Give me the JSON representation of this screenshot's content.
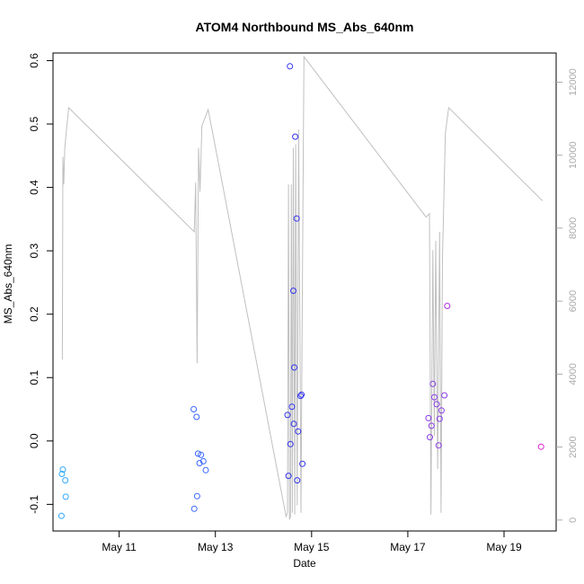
{
  "chart_data": {
    "type": "scatter",
    "title": "ATOM4 Northbound MS_Abs_640nm",
    "xlabel": "Date",
    "ylabel": "MS_Abs_640nm",
    "xlim": [
      "May 9 15:00",
      "May 20 02:00"
    ],
    "ylim": [
      -0.142,
      0.612
    ],
    "y2lim": [
      -300,
      12800
    ],
    "x_ticks": [
      {
        "label": "May 11",
        "day": 11
      },
      {
        "label": "May 13",
        "day": 13
      },
      {
        "label": "May 15",
        "day": 15
      },
      {
        "label": "May 17",
        "day": 17
      },
      {
        "label": "May 19",
        "day": 19
      }
    ],
    "y_ticks": [
      -0.1,
      0.0,
      0.1,
      0.2,
      0.3,
      0.4,
      0.5,
      0.6
    ],
    "y_tick_labels": [
      "-0.1",
      "0.0",
      "0.1",
      "0.2",
      "0.3",
      "0.4",
      "0.5",
      "0.6"
    ],
    "y2_ticks": [
      0,
      2000,
      4000,
      6000,
      8000,
      10000,
      12000
    ],
    "y2_tick_labels": [
      "0",
      "2000",
      "4000",
      "6000",
      "8000",
      "10000",
      "12000"
    ],
    "colors": {
      "secondary_line": "#c0c0c0",
      "axis": "#000000",
      "right_axis": "#aaaaaa",
      "points_start": "#33aaff",
      "points_mid": "#2a2aee",
      "points_end": "#dd22cc"
    },
    "points": [
      {
        "t": 9.8,
        "y": -0.118,
        "color": "#33aaff"
      },
      {
        "t": 9.81,
        "y": -0.052,
        "color": "#33aaff"
      },
      {
        "t": 9.83,
        "y": -0.045,
        "color": "#33aaff"
      },
      {
        "t": 9.88,
        "y": -0.062,
        "color": "#33aaff"
      },
      {
        "t": 9.89,
        "y": -0.088,
        "color": "#33aaff"
      },
      {
        "t": 12.55,
        "y": 0.05,
        "color": "#3a66ff"
      },
      {
        "t": 12.56,
        "y": -0.107,
        "color": "#3a66ff"
      },
      {
        "t": 12.61,
        "y": 0.038,
        "color": "#3a66ff"
      },
      {
        "t": 12.62,
        "y": -0.087,
        "color": "#3a66ff"
      },
      {
        "t": 12.64,
        "y": -0.02,
        "color": "#3a66ff"
      },
      {
        "t": 12.67,
        "y": -0.035,
        "color": "#3a66ff"
      },
      {
        "t": 12.7,
        "y": -0.022,
        "color": "#3a66ff"
      },
      {
        "t": 12.75,
        "y": -0.032,
        "color": "#3a66ff"
      },
      {
        "t": 12.8,
        "y": -0.046,
        "color": "#3a66ff"
      },
      {
        "t": 14.5,
        "y": 0.041,
        "color": "#3333ee"
      },
      {
        "t": 14.52,
        "y": -0.055,
        "color": "#3333ee"
      },
      {
        "t": 14.55,
        "y": 0.591,
        "color": "#3333ee"
      },
      {
        "t": 14.56,
        "y": -0.005,
        "color": "#3333ee"
      },
      {
        "t": 14.59,
        "y": 0.054,
        "color": "#3333ee"
      },
      {
        "t": 14.62,
        "y": 0.237,
        "color": "#3333ee"
      },
      {
        "t": 14.63,
        "y": 0.027,
        "color": "#3333ee"
      },
      {
        "t": 14.64,
        "y": 0.116,
        "color": "#3333ee"
      },
      {
        "t": 14.66,
        "y": 0.48,
        "color": "#3333ee"
      },
      {
        "t": 14.69,
        "y": 0.351,
        "color": "#3333ee"
      },
      {
        "t": 14.7,
        "y": -0.062,
        "color": "#3333ee"
      },
      {
        "t": 14.72,
        "y": 0.015,
        "color": "#3333ee"
      },
      {
        "t": 14.77,
        "y": 0.071,
        "color": "#3333ee"
      },
      {
        "t": 14.79,
        "y": 0.073,
        "color": "#3333ee"
      },
      {
        "t": 14.81,
        "y": -0.036,
        "color": "#3333ee"
      },
      {
        "t": 17.43,
        "y": 0.036,
        "color": "#8a3ee8"
      },
      {
        "t": 17.46,
        "y": 0.006,
        "color": "#8a3ee8"
      },
      {
        "t": 17.49,
        "y": 0.024,
        "color": "#8a3ee8"
      },
      {
        "t": 17.52,
        "y": 0.09,
        "color": "#8a3ee8"
      },
      {
        "t": 17.55,
        "y": 0.069,
        "color": "#8a3ee8"
      },
      {
        "t": 17.6,
        "y": 0.058,
        "color": "#8a3ee8"
      },
      {
        "t": 17.64,
        "y": -0.007,
        "color": "#8a3ee8"
      },
      {
        "t": 17.66,
        "y": 0.035,
        "color": "#8a3ee8"
      },
      {
        "t": 17.7,
        "y": 0.048,
        "color": "#8a3ee8"
      },
      {
        "t": 17.76,
        "y": 0.072,
        "color": "#8a3ee8"
      },
      {
        "t": 17.82,
        "y": 0.213,
        "color": "#b52ee0"
      },
      {
        "t": 19.77,
        "y": -0.009,
        "color": "#dd22cc"
      }
    ],
    "secondary_series": {
      "axis": "right",
      "points": [
        [
          9.82,
          4400
        ],
        [
          9.83,
          9950
        ],
        [
          9.85,
          9200
        ],
        [
          9.87,
          10200
        ],
        [
          9.95,
          11300
        ],
        [
          12.56,
          7900
        ],
        [
          12.59,
          9250
        ],
        [
          12.62,
          4300
        ],
        [
          12.65,
          10200
        ],
        [
          12.68,
          9000
        ],
        [
          12.72,
          10800
        ],
        [
          12.85,
          11250
        ],
        [
          14.47,
          100
        ],
        [
          14.5,
          200
        ],
        [
          14.52,
          9200
        ],
        [
          14.54,
          10
        ],
        [
          14.56,
          100
        ],
        [
          14.58,
          9200
        ],
        [
          14.6,
          200
        ],
        [
          14.62,
          10200
        ],
        [
          14.65,
          150
        ],
        [
          14.67,
          10300
        ],
        [
          14.7,
          400
        ],
        [
          14.73,
          10700
        ],
        [
          14.78,
          200
        ],
        [
          14.8,
          4700
        ],
        [
          14.84,
          12700
        ],
        [
          17.38,
          8300
        ],
        [
          17.45,
          8400
        ],
        [
          17.48,
          150
        ],
        [
          17.52,
          7400
        ],
        [
          17.55,
          2300
        ],
        [
          17.58,
          7650
        ],
        [
          17.62,
          1400
        ],
        [
          17.66,
          7900
        ],
        [
          17.69,
          200
        ],
        [
          17.72,
          7200
        ],
        [
          17.78,
          10600
        ],
        [
          17.85,
          11300
        ],
        [
          19.8,
          8750
        ]
      ]
    }
  }
}
